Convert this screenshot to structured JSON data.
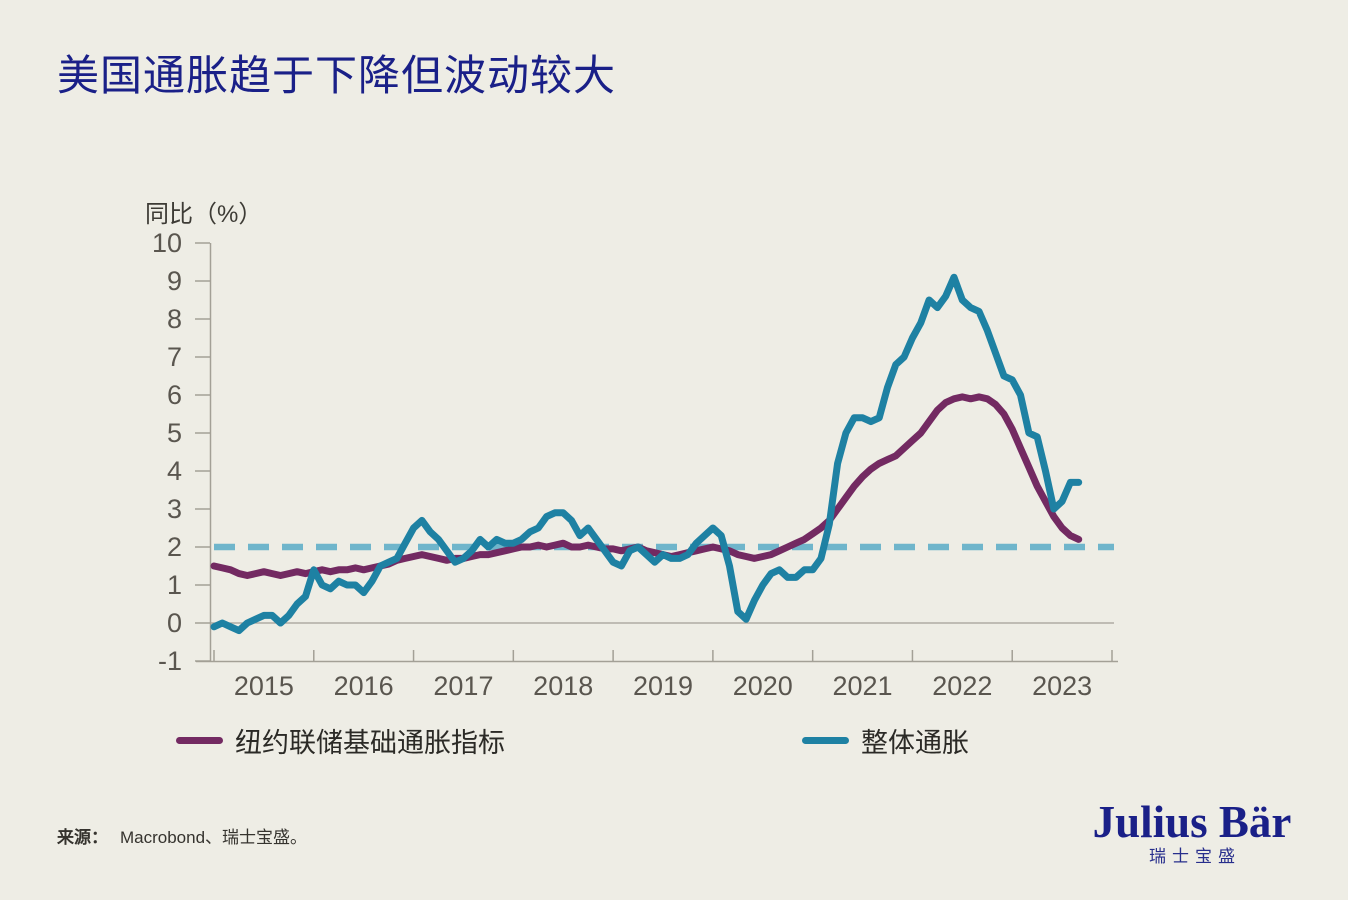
{
  "page": {
    "background": "#eeede5"
  },
  "header": {
    "title": "美国通胀趋于下降但波动较大"
  },
  "chart_data": {
    "type": "line",
    "title": "美国通胀趋于下降但波动较大",
    "xlabel": "",
    "ylabel": "同比（%）",
    "ylim": [
      -1,
      10
    ],
    "yticks": [
      10,
      9,
      8,
      7,
      6,
      5,
      4,
      3,
      2,
      1,
      0,
      -1
    ],
    "xticks_years": [
      "2015",
      "2016",
      "2017",
      "2018",
      "2019",
      "2020",
      "2021",
      "2022",
      "2023"
    ],
    "x_start": "2015-01",
    "x_end": "2023-09",
    "x_frequency": "monthly",
    "grid": "zero-line-only",
    "legend_position": "bottom",
    "axis_color": "#a3a096",
    "tick_text_color": "#5a564f",
    "target_line": {
      "value": 2,
      "style": "dashed",
      "color": "#6fb5cb"
    },
    "series": [
      {
        "name": "纽约联储基础通胀指标",
        "color": "#732a62",
        "values": [
          1.5,
          1.45,
          1.4,
          1.3,
          1.25,
          1.3,
          1.35,
          1.3,
          1.25,
          1.3,
          1.35,
          1.3,
          1.35,
          1.4,
          1.35,
          1.4,
          1.4,
          1.45,
          1.4,
          1.45,
          1.5,
          1.55,
          1.65,
          1.7,
          1.75,
          1.8,
          1.75,
          1.7,
          1.65,
          1.7,
          1.7,
          1.75,
          1.8,
          1.8,
          1.85,
          1.9,
          1.95,
          2.0,
          2.0,
          2.05,
          2.0,
          2.05,
          2.1,
          2.0,
          2.0,
          2.05,
          2.0,
          1.95,
          1.95,
          1.9,
          1.95,
          2.0,
          1.9,
          1.85,
          1.8,
          1.75,
          1.8,
          1.85,
          1.9,
          1.95,
          2.0,
          1.95,
          1.9,
          1.8,
          1.75,
          1.7,
          1.75,
          1.8,
          1.9,
          2.0,
          2.1,
          2.2,
          2.35,
          2.5,
          2.7,
          3.0,
          3.3,
          3.6,
          3.85,
          4.05,
          4.2,
          4.3,
          4.4,
          4.6,
          4.8,
          5.0,
          5.3,
          5.6,
          5.8,
          5.9,
          5.95,
          5.9,
          5.95,
          5.9,
          5.75,
          5.5,
          5.1,
          4.6,
          4.1,
          3.6,
          3.2,
          2.8,
          2.5,
          2.3,
          2.2
        ]
      },
      {
        "name": "整体通胀",
        "color": "#1e81a3",
        "values": [
          -0.1,
          0.0,
          -0.1,
          -0.2,
          0.0,
          0.1,
          0.2,
          0.2,
          0.0,
          0.2,
          0.5,
          0.7,
          1.4,
          1.0,
          0.9,
          1.1,
          1.0,
          1.0,
          0.8,
          1.1,
          1.5,
          1.6,
          1.7,
          2.1,
          2.5,
          2.7,
          2.4,
          2.2,
          1.9,
          1.6,
          1.7,
          1.9,
          2.2,
          2.0,
          2.2,
          2.1,
          2.1,
          2.2,
          2.4,
          2.5,
          2.8,
          2.9,
          2.9,
          2.7,
          2.3,
          2.5,
          2.2,
          1.9,
          1.6,
          1.5,
          1.9,
          2.0,
          1.8,
          1.6,
          1.8,
          1.7,
          1.7,
          1.8,
          2.1,
          2.3,
          2.5,
          2.3,
          1.5,
          0.3,
          0.1,
          0.6,
          1.0,
          1.3,
          1.4,
          1.2,
          1.2,
          1.4,
          1.4,
          1.7,
          2.6,
          4.2,
          5.0,
          5.4,
          5.4,
          5.3,
          5.4,
          6.2,
          6.8,
          7.0,
          7.5,
          7.9,
          8.5,
          8.3,
          8.6,
          9.1,
          8.5,
          8.3,
          8.2,
          7.7,
          7.1,
          6.5,
          6.4,
          6.0,
          5.0,
          4.9,
          4.0,
          3.0,
          3.2,
          3.7,
          3.7
        ]
      }
    ]
  },
  "source": {
    "label": "来源：",
    "text": "Macrobond、瑞士宝盛。"
  },
  "branding": {
    "logo": "Julius Bär",
    "logo_cn": "瑞士宝盛"
  }
}
